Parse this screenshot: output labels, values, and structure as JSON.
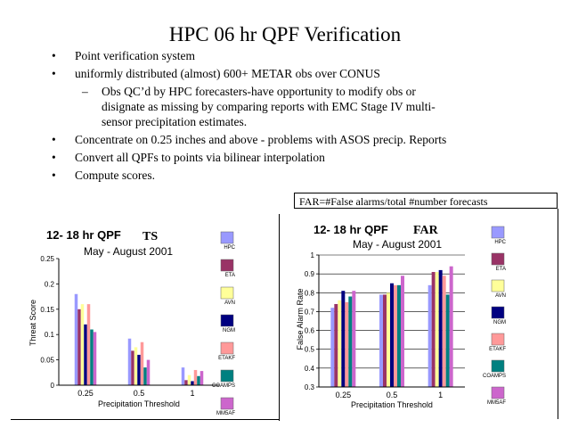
{
  "slide": {
    "title": "HPC 06 hr QPF Verification",
    "bullets": [
      "Point verification system",
      "uniformly distributed (almost) 600+ METAR obs over CONUS"
    ],
    "sub_bullet": {
      "line1": "Obs QC’d by HPC forecasters-have opportunity to modify obs or",
      "line2": "disignate as missing by comparing reports with EMC Stage IV multi-",
      "line3": "sensor precipitation estimates."
    },
    "bullets_after": [
      "Concentrate on 0.25 inches and above - problems with ASOS precip. Reports",
      "Convert all QPFs to points via bilinear interpolation",
      "Compute scores."
    ],
    "far_note": "FAR=#False alarms/total #number forecasts",
    "bullet_glyph": "•",
    "dash_glyph": "–"
  },
  "chart_data": [
    {
      "type": "bar",
      "title": "12- 18 hr QPF",
      "title_tag": "TS",
      "subtitle": "May - August 2001",
      "xlabel": "Precipitation Threshold",
      "ylabel": "Threat Score",
      "ylim": [
        0,
        0.25
      ],
      "yticks": [
        "0",
        "0.05",
        "0.1",
        "0.15",
        "0.2",
        "0.25"
      ],
      "categories": [
        "0.25",
        "0.5",
        "1"
      ],
      "legend_position": "right",
      "grid": false,
      "series": [
        {
          "name": "HPC",
          "color": "#9999ff",
          "values": [
            0.18,
            0.092,
            0.035
          ]
        },
        {
          "name": "ETA",
          "color": "#993366",
          "values": [
            0.15,
            0.068,
            0.01
          ]
        },
        {
          "name": "AVN",
          "color": "#ffff99",
          "values": [
            0.16,
            0.075,
            0.02
          ]
        },
        {
          "name": "NGM",
          "color": "#000080",
          "values": [
            0.12,
            0.06,
            0.008
          ]
        },
        {
          "name": "ETAKF",
          "color": "#ff9999",
          "values": [
            0.16,
            0.085,
            0.03
          ]
        },
        {
          "name": "COAMPS",
          "color": "#008080",
          "values": [
            0.11,
            0.035,
            0.018
          ]
        },
        {
          "name": "MM5AF",
          "color": "#cc66cc",
          "values": [
            0.105,
            0.05,
            0.028
          ]
        }
      ]
    },
    {
      "type": "bar",
      "title": "12- 18 hr QPF",
      "title_tag": "FAR",
      "subtitle": "May - August 2001",
      "xlabel": "Precipitation Threshold",
      "ylabel": "False Alarm Rate",
      "ylim": [
        0.3,
        1
      ],
      "yticks": [
        "0.3",
        "0.4",
        "0.5",
        "0.6",
        "0.7",
        "0.8",
        "0.9",
        "1"
      ],
      "categories": [
        "0.25",
        "0.5",
        "1"
      ],
      "legend_position": "right",
      "grid": true,
      "series": [
        {
          "name": "HPC",
          "color": "#9999ff",
          "values": [
            0.72,
            0.79,
            0.84
          ]
        },
        {
          "name": "ETA",
          "color": "#993366",
          "values": [
            0.74,
            0.79,
            0.91
          ]
        },
        {
          "name": "AVN",
          "color": "#ffff99",
          "values": [
            0.76,
            0.8,
            0.91
          ]
        },
        {
          "name": "NGM",
          "color": "#000080",
          "values": [
            0.81,
            0.85,
            0.92
          ]
        },
        {
          "name": "ETAKF",
          "color": "#ff9999",
          "values": [
            0.75,
            0.84,
            0.89
          ]
        },
        {
          "name": "COAMPS",
          "color": "#008080",
          "values": [
            0.78,
            0.84,
            0.79
          ]
        },
        {
          "name": "MM5AF",
          "color": "#cc66cc",
          "values": [
            0.81,
            0.89,
            0.94
          ]
        }
      ]
    }
  ]
}
